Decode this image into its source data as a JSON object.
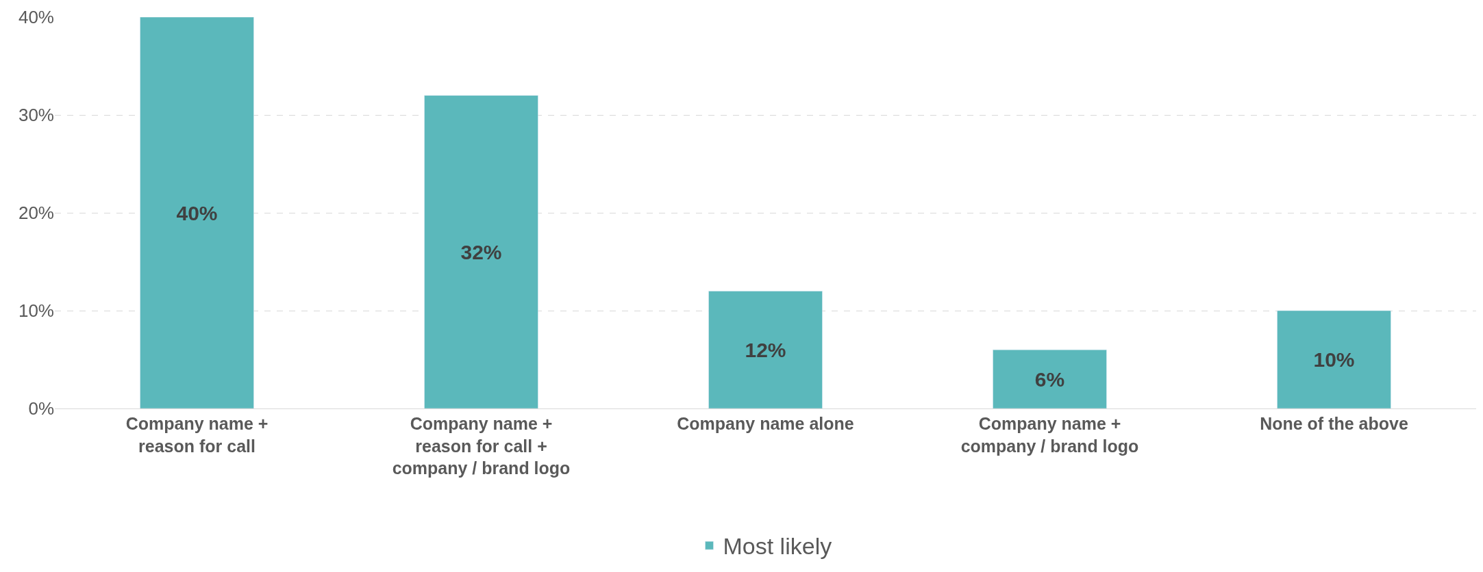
{
  "chart_data": {
    "type": "bar",
    "categories": [
      "Company name + reason for call",
      "Company name + reason for call + company / brand logo",
      "Company name alone",
      "Company name + company / brand logo",
      "None of the above"
    ],
    "series": [
      {
        "name": "Most likely",
        "color": "#5bb8bb",
        "values": [
          40,
          32,
          12,
          6,
          10
        ],
        "value_labels": [
          "40%",
          "32%",
          "12%",
          "6%",
          "10%"
        ]
      }
    ],
    "ylim": [
      0,
      40
    ],
    "yticks": [
      {
        "value": 0,
        "label": "0%"
      },
      {
        "value": 10,
        "label": "10%"
      },
      {
        "value": 20,
        "label": "20%"
      },
      {
        "value": 30,
        "label": "30%"
      },
      {
        "value": 40,
        "label": "40%"
      }
    ],
    "grid": "y",
    "line_style": "dashed",
    "legend": "bottom"
  }
}
